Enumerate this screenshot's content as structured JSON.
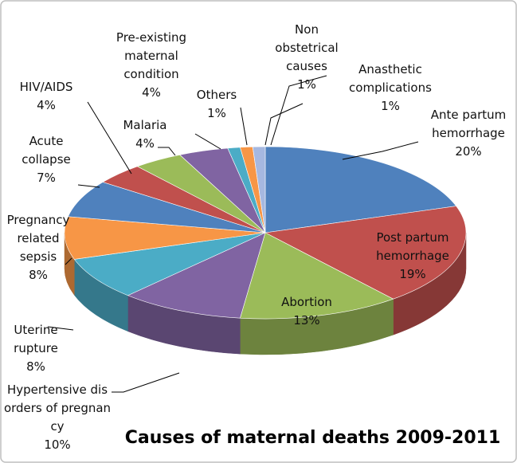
{
  "chart_data": {
    "type": "pie",
    "title": "Causes of maternal deaths 2009-2011",
    "categories": [
      "Ante partum hemorrhage",
      "Post partum hemorrhage",
      "Abortion",
      "Hypertensive disorders of pregnancy",
      "Uterine rupture",
      "Pregnancy related sepsis",
      "Acute collapse",
      "HIV/AIDS",
      "Malaria",
      "Pre-existing maternal condition",
      "Others",
      "Non obstetrical causes",
      "Anasthetic complications"
    ],
    "values": [
      20,
      19,
      13,
      10,
      8,
      8,
      7,
      4,
      4,
      4,
      1,
      1,
      1
    ],
    "value_labels": [
      "20%",
      "19%",
      "13%",
      "10%",
      "8%",
      "8%",
      "7%",
      "4%",
      "4%",
      "4%",
      "1%",
      "1%",
      "1%"
    ],
    "colors": [
      "#4f81bd",
      "#c0504d",
      "#9bbb59",
      "#8064a2",
      "#4bacc6",
      "#f79646",
      "#4f81bd",
      "#c0504d",
      "#9bbb59",
      "#8064a2",
      "#4bacc6",
      "#f79646",
      "#a6b8e0"
    ]
  }
}
